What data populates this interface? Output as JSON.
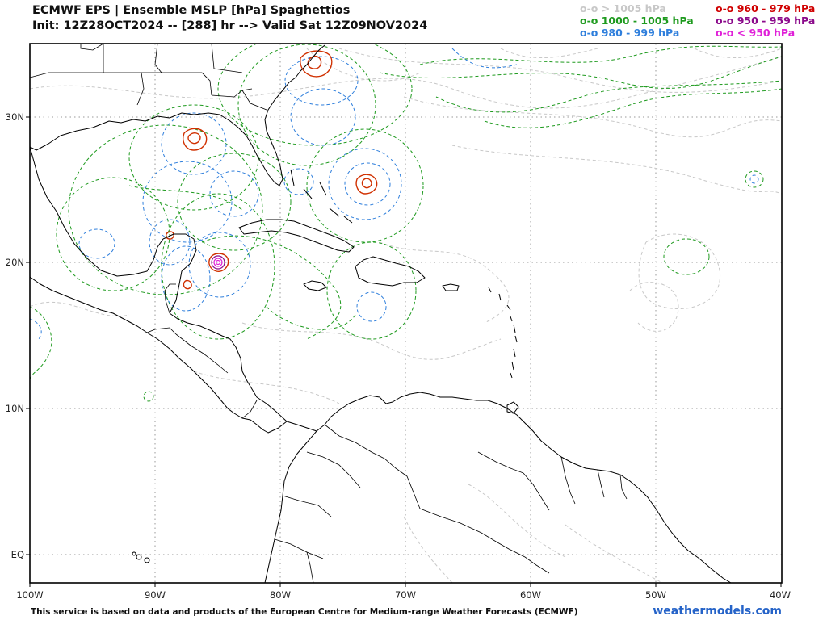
{
  "header": {
    "title": "ECMWF EPS | Ensemble MSLP [hPa] Spaghettios",
    "subtitle": "Init: 12Z28OCT2024 -- [288] hr --> Valid Sat 12Z09NOV2024"
  },
  "legend": {
    "items": [
      {
        "label": "o-o > 1005 hPa",
        "color": "#c8c8c8"
      },
      {
        "label": "o-o 1000 - 1005 hPa",
        "color": "#1e9a1e"
      },
      {
        "label": "o-o 980 - 999 hPa",
        "color": "#2f7fdc"
      },
      {
        "label": "o-o 960 - 979 hPa",
        "color": "#d00000"
      },
      {
        "label": "o-o 950 - 959 hPa",
        "color": "#8b0a8b"
      },
      {
        "label": "o-o < 950 hPa",
        "color": "#e020d8"
      }
    ]
  },
  "axes": {
    "lon_labels": [
      "100W",
      "90W",
      "80W",
      "70W",
      "60W",
      "50W",
      "40W"
    ],
    "lat_labels": [
      "30N",
      "20N",
      "10N",
      "EQ"
    ]
  },
  "footer": {
    "credit": "This service is based on data and products of the European Centre for Medium-range Weather Forecasts (ECMWF)",
    "site": "weathermodels.com"
  }
}
